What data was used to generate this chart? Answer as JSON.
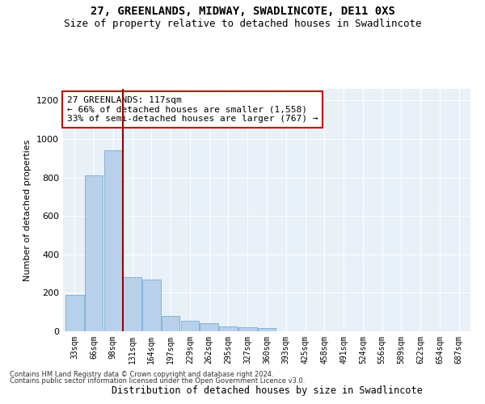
{
  "title": "27, GREENLANDS, MIDWAY, SWADLINCOTE, DE11 0XS",
  "subtitle": "Size of property relative to detached houses in Swadlincote",
  "xlabel": "Distribution of detached houses by size in Swadlincote",
  "ylabel": "Number of detached properties",
  "categories": [
    "33sqm",
    "66sqm",
    "98sqm",
    "131sqm",
    "164sqm",
    "197sqm",
    "229sqm",
    "262sqm",
    "295sqm",
    "327sqm",
    "360sqm",
    "393sqm",
    "425sqm",
    "458sqm",
    "491sqm",
    "524sqm",
    "556sqm",
    "589sqm",
    "622sqm",
    "654sqm",
    "687sqm"
  ],
  "values": [
    190,
    810,
    940,
    280,
    270,
    80,
    55,
    40,
    25,
    20,
    15,
    0,
    0,
    0,
    0,
    0,
    0,
    0,
    0,
    0,
    0
  ],
  "bar_color": "#b8d0ea",
  "bar_edge_color": "#7aadd4",
  "vline_color": "#990000",
  "vline_pos": 2.5,
  "annotation_text": "27 GREENLANDS: 117sqm\n← 66% of detached houses are smaller (1,558)\n33% of semi-detached houses are larger (767) →",
  "annotation_box_facecolor": "#ffffff",
  "annotation_box_edgecolor": "#cc0000",
  "ylim": [
    0,
    1260
  ],
  "yticks": [
    0,
    200,
    400,
    600,
    800,
    1000,
    1200
  ],
  "footer_line1": "Contains HM Land Registry data © Crown copyright and database right 2024.",
  "footer_line2": "Contains public sector information licensed under the Open Government Licence v3.0.",
  "plot_bg_color": "#e8f0f8",
  "title_fontsize": 10,
  "subtitle_fontsize": 9,
  "annot_fontsize": 8
}
